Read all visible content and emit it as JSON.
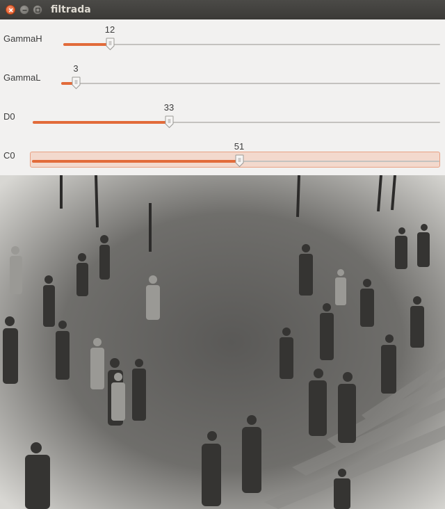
{
  "window": {
    "title": "filtrada",
    "buttons": {
      "close_icon": "close-icon",
      "minimize_icon": "minimize-icon",
      "maximize_icon": "maximize-icon"
    }
  },
  "trackbars": [
    {
      "label": "GammaH",
      "value": "12",
      "fraction": 0.124
    },
    {
      "label": "GammaL",
      "value": "3",
      "fraction": 0.038
    },
    {
      "label": "D0",
      "value": "33",
      "fraction": 0.334
    },
    {
      "label": "C0",
      "value": "51",
      "fraction": 0.508
    }
  ],
  "colors": {
    "accent": "#e26b3a",
    "focus_bg": "#f3d9cd",
    "titlebar": "#3c3b37"
  },
  "image": {
    "description_icon": "grayscale-photo"
  }
}
